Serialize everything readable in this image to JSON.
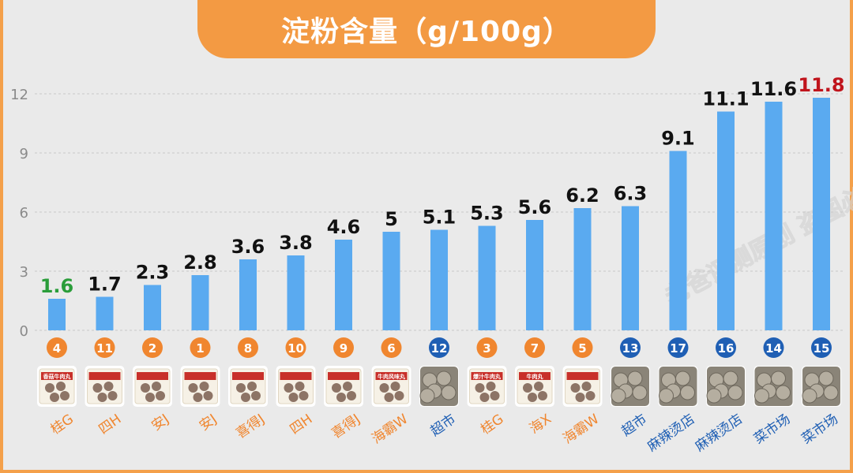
{
  "title": "淀粉含量（g/100g）",
  "watermark": "老爸评测原创 盗图必究",
  "colors": {
    "bar": "#5aaaf0",
    "orange": "#f0862f",
    "blue": "#1f5fb4",
    "label_default": "#111111",
    "label_min": "#2a9d3a",
    "label_max": "#c0141c"
  },
  "chart_data": {
    "type": "bar",
    "title": "淀粉含量（g/100g）",
    "ylim": [
      0,
      13
    ],
    "yticks": [
      0,
      3,
      6,
      9,
      12
    ],
    "grid": true,
    "categories": [
      "桂G",
      "四H",
      "安J",
      "安J",
      "喜得J",
      "四H",
      "喜得J",
      "海霸W",
      "超市",
      "桂G",
      "海X",
      "海霸W",
      "超市",
      "麻辣烫店",
      "麻辣烫店",
      "菜市场",
      "菜市场"
    ],
    "values": [
      1.6,
      1.7,
      2.3,
      2.8,
      3.6,
      3.8,
      4.6,
      5,
      5.1,
      5.3,
      5.6,
      6.2,
      6.3,
      9.1,
      11.1,
      11.6,
      11.8
    ],
    "value_labels": [
      "1.6",
      "1.7",
      "2.3",
      "2.8",
      "3.6",
      "3.8",
      "4.6",
      "5",
      "5.1",
      "5.3",
      "5.6",
      "6.2",
      "6.3",
      "9.1",
      "11.1",
      "11.6",
      "11.8"
    ],
    "sample_numbers": [
      "4",
      "11",
      "2",
      "1",
      "8",
      "10",
      "9",
      "6",
      "12",
      "3",
      "7",
      "5",
      "13",
      "17",
      "16",
      "14",
      "15"
    ],
    "source_type": [
      "packaged",
      "packaged",
      "packaged",
      "packaged",
      "packaged",
      "packaged",
      "packaged",
      "packaged",
      "bulk",
      "packaged",
      "packaged",
      "packaged",
      "bulk",
      "bulk",
      "bulk",
      "bulk",
      "bulk"
    ],
    "thumbnail_text": [
      "香菇牛肉丸",
      "",
      "",
      "",
      "",
      "",
      "",
      "牛肉风味丸",
      "",
      "爆汁牛肉丸",
      "牛肉丸",
      "",
      "",
      "",
      "",
      "",
      ""
    ]
  }
}
